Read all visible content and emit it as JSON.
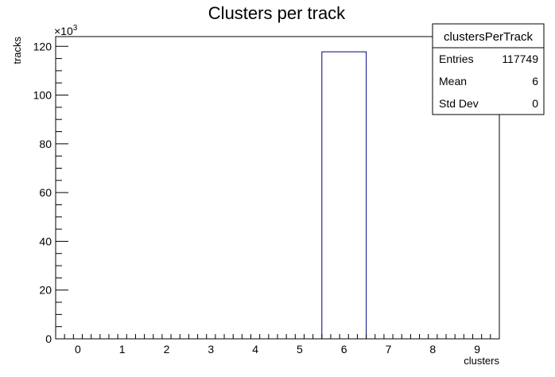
{
  "chart_data": {
    "type": "bar",
    "title": "Clusters per track",
    "xlabel": "clusters",
    "ylabel": "tracks",
    "y_multiplier_label": "×10",
    "y_multiplier_exponent": "3",
    "xlim": [
      -0.5,
      9.5
    ],
    "ylim": [
      0,
      124
    ],
    "x_ticks": [
      "0",
      "1",
      "2",
      "3",
      "4",
      "5",
      "6",
      "7",
      "8",
      "9"
    ],
    "y_ticks": [
      "0",
      "20",
      "40",
      "60",
      "80",
      "100",
      "120"
    ],
    "bins": [
      {
        "low": 5.5,
        "high": 6.5,
        "value": 117.749
      }
    ],
    "bar_color": "#00007f",
    "grid": false,
    "legend": "none"
  },
  "stats_box": {
    "name": "clustersPerTrack",
    "rows": [
      {
        "label": "Entries",
        "value": "117749"
      },
      {
        "label": "Mean",
        "value": "6"
      },
      {
        "label": "Std Dev",
        "value": "0"
      }
    ]
  }
}
